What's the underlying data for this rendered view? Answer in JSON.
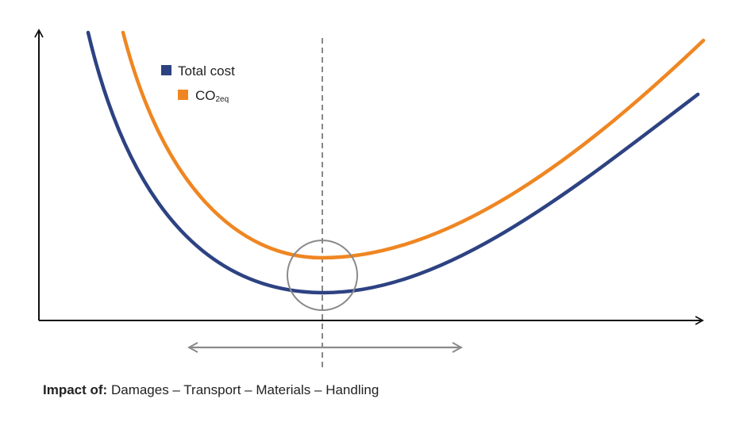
{
  "chart_data": {
    "type": "line",
    "title": "",
    "xlabel": "",
    "ylabel": "",
    "axis_ticks": "none",
    "grid": false,
    "legend_placement": "top-left",
    "series": [
      {
        "name": "Total cost",
        "name_main": "Total cost",
        "name_sub": "",
        "color": "#2d4282",
        "shape": "U-curve, minimum at the marked optimum"
      },
      {
        "name": "CO2eq",
        "name_main": "CO",
        "name_sub": "2eq",
        "color": "#ef8622",
        "shape": "U-curve above Total cost, minimum at the marked optimum"
      }
    ],
    "annotations": {
      "optimum_marker": "circle",
      "range_arrow": "double-headed"
    }
  },
  "caption": {
    "label": "Impact of:",
    "text": " Damages – Transport – Materials – Handling"
  }
}
